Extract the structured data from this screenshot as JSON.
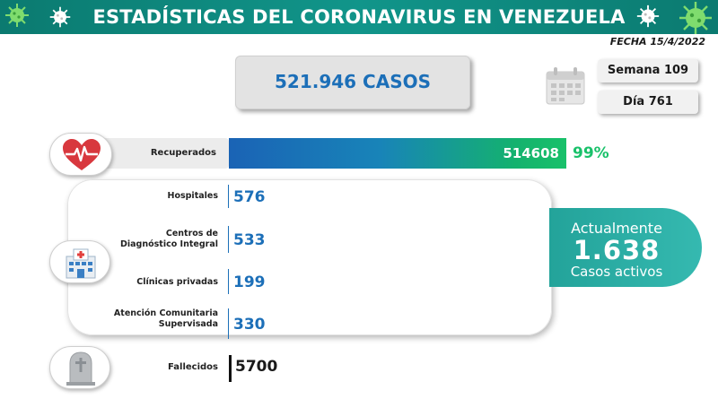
{
  "header": {
    "title": "ESTADÍSTICAS DEL CORONAVIRUS EN VENEZUELA",
    "date": "FECHA 15/4/2022"
  },
  "totals": {
    "cases_label": "521.946 CASOS",
    "week": "Semana 109",
    "day": "Día 761"
  },
  "recovered": {
    "label": "Recuperados",
    "value": "514608",
    "percent": "99%",
    "fraction": 0.99
  },
  "locations": [
    {
      "label": "Hospitales",
      "value": "576"
    },
    {
      "label": "Centros de Diagnóstico Integral",
      "value": "533"
    },
    {
      "label": "Clínicas privadas",
      "value": "199"
    },
    {
      "label": "Atención Comunitaria Supervisada",
      "value": "330"
    }
  ],
  "active": {
    "line1": "Actualmente",
    "value": "1.638",
    "line2": "Casos activos"
  },
  "deceased": {
    "label": "Fallecidos",
    "value": "5700"
  },
  "colors": {
    "banner": "#0b7a70",
    "accent_blue": "#1c6fb8",
    "accent_green": "#19c16a",
    "active_bubble": "#2bada4",
    "virus": "#7fdc6e"
  },
  "icons": {
    "virus": "virus-icon",
    "calendar": "calendar-icon",
    "heart": "heart-pulse-icon",
    "hospital": "hospital-icon",
    "grave": "tombstone-icon"
  }
}
